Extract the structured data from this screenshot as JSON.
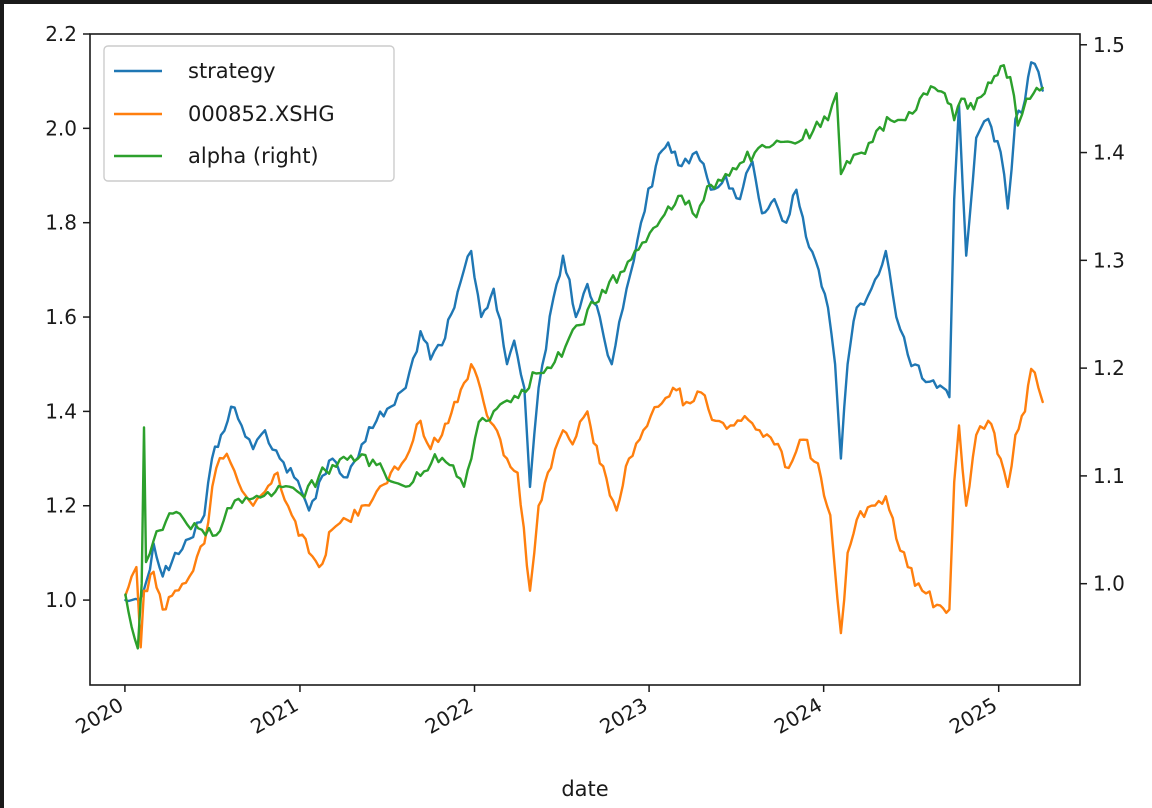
{
  "chart_data": {
    "type": "line",
    "title": "",
    "xlabel": "date",
    "ylabel": "",
    "grid": false,
    "legend_position": "top-left",
    "x_range": [
      "2019-10-20",
      "2025-06-20"
    ],
    "xticks": [
      "2020-01-01",
      "2021-01-01",
      "2022-01-01",
      "2023-01-01",
      "2024-01-01",
      "2025-01-01"
    ],
    "xtick_labels": [
      "2020",
      "2021",
      "2022",
      "2023",
      "2024",
      "2025"
    ],
    "left_axis": {
      "ylim": [
        0.82,
        2.2
      ],
      "ticks": [
        1.0,
        1.2,
        1.4,
        1.6,
        1.8,
        2.0,
        2.2
      ],
      "tick_labels": [
        "1.0",
        "1.2",
        "1.4",
        "1.6",
        "1.8",
        "2.0",
        "2.2"
      ]
    },
    "right_axis": {
      "ylim": [
        0.906,
        1.51
      ],
      "ticks": [
        1.0,
        1.1,
        1.2,
        1.3,
        1.4,
        1.5
      ],
      "tick_labels": [
        "1.0",
        "1.1",
        "1.2",
        "1.3",
        "1.4",
        "1.5"
      ]
    },
    "series": [
      {
        "name": "strategy",
        "axis": "left",
        "color": "#1f77b4",
        "points": [
          [
            "2020-01-02",
            1.0
          ],
          [
            "2020-01-15",
            1.0
          ],
          [
            "2020-02-01",
            1.0
          ],
          [
            "2020-02-15",
            1.04
          ],
          [
            "2020-03-01",
            1.12
          ],
          [
            "2020-03-20",
            1.05
          ],
          [
            "2020-04-15",
            1.1
          ],
          [
            "2020-05-15",
            1.13
          ],
          [
            "2020-06-15",
            1.18
          ],
          [
            "2020-07-01",
            1.3
          ],
          [
            "2020-07-20",
            1.35
          ],
          [
            "2020-08-10",
            1.41
          ],
          [
            "2020-09-01",
            1.37
          ],
          [
            "2020-09-25",
            1.32
          ],
          [
            "2020-10-20",
            1.36
          ],
          [
            "2020-11-20",
            1.3
          ],
          [
            "2020-12-20",
            1.26
          ],
          [
            "2021-01-20",
            1.19
          ],
          [
            "2021-02-10",
            1.25
          ],
          [
            "2021-03-10",
            1.3
          ],
          [
            "2021-04-10",
            1.26
          ],
          [
            "2021-05-10",
            1.33
          ],
          [
            "2021-06-10",
            1.38
          ],
          [
            "2021-07-10",
            1.41
          ],
          [
            "2021-08-10",
            1.45
          ],
          [
            "2021-09-10",
            1.57
          ],
          [
            "2021-10-01",
            1.51
          ],
          [
            "2021-10-25",
            1.54
          ],
          [
            "2021-11-20",
            1.62
          ],
          [
            "2021-12-10",
            1.7
          ],
          [
            "2021-12-25",
            1.74
          ],
          [
            "2022-01-15",
            1.6
          ],
          [
            "2022-02-10",
            1.66
          ],
          [
            "2022-03-10",
            1.5
          ],
          [
            "2022-03-25",
            1.55
          ],
          [
            "2022-04-15",
            1.45
          ],
          [
            "2022-04-27",
            1.24
          ],
          [
            "2022-05-15",
            1.45
          ],
          [
            "2022-06-15",
            1.64
          ],
          [
            "2022-07-05",
            1.73
          ],
          [
            "2022-08-01",
            1.6
          ],
          [
            "2022-08-25",
            1.67
          ],
          [
            "2022-09-20",
            1.6
          ],
          [
            "2022-10-15",
            1.5
          ],
          [
            "2022-11-15",
            1.66
          ],
          [
            "2022-12-15",
            1.8
          ],
          [
            "2023-01-15",
            1.92
          ],
          [
            "2023-02-10",
            1.97
          ],
          [
            "2023-03-10",
            1.92
          ],
          [
            "2023-04-10",
            1.95
          ],
          [
            "2023-05-10",
            1.87
          ],
          [
            "2023-06-10",
            1.9
          ],
          [
            "2023-07-10",
            1.85
          ],
          [
            "2023-08-05",
            1.93
          ],
          [
            "2023-08-25",
            1.82
          ],
          [
            "2023-09-20",
            1.85
          ],
          [
            "2023-10-15",
            1.8
          ],
          [
            "2023-11-05",
            1.87
          ],
          [
            "2023-11-25",
            1.77
          ],
          [
            "2023-12-15",
            1.72
          ],
          [
            "2024-01-10",
            1.62
          ],
          [
            "2024-01-25",
            1.5
          ],
          [
            "2024-02-06",
            1.3
          ],
          [
            "2024-02-20",
            1.5
          ],
          [
            "2024-03-10",
            1.62
          ],
          [
            "2024-04-10",
            1.66
          ],
          [
            "2024-05-10",
            1.74
          ],
          [
            "2024-06-01",
            1.6
          ],
          [
            "2024-06-25",
            1.52
          ],
          [
            "2024-07-25",
            1.47
          ],
          [
            "2024-08-25",
            1.45
          ],
          [
            "2024-09-20",
            1.43
          ],
          [
            "2024-09-30",
            1.85
          ],
          [
            "2024-10-10",
            2.05
          ],
          [
            "2024-10-25",
            1.73
          ],
          [
            "2024-11-15",
            1.98
          ],
          [
            "2024-12-10",
            2.02
          ],
          [
            "2025-01-05",
            1.95
          ],
          [
            "2025-01-20",
            1.83
          ],
          [
            "2025-02-05",
            2.02
          ],
          [
            "2025-02-25",
            2.06
          ],
          [
            "2025-03-10",
            2.14
          ],
          [
            "2025-03-25",
            2.12
          ],
          [
            "2025-04-03",
            2.08
          ]
        ]
      },
      {
        "name": "000852.XSHG",
        "axis": "left",
        "color": "#ff7f0e",
        "points": [
          [
            "2020-01-02",
            1.01
          ],
          [
            "2020-01-15",
            1.05
          ],
          [
            "2020-01-25",
            1.07
          ],
          [
            "2020-02-03",
            0.9
          ],
          [
            "2020-02-10",
            1.02
          ],
          [
            "2020-03-01",
            1.06
          ],
          [
            "2020-03-20",
            0.98
          ],
          [
            "2020-04-15",
            1.02
          ],
          [
            "2020-05-15",
            1.05
          ],
          [
            "2020-06-15",
            1.12
          ],
          [
            "2020-07-10",
            1.28
          ],
          [
            "2020-08-01",
            1.31
          ],
          [
            "2020-08-25",
            1.25
          ],
          [
            "2020-09-25",
            1.2
          ],
          [
            "2020-10-20",
            1.23
          ],
          [
            "2020-11-15",
            1.27
          ],
          [
            "2020-12-15",
            1.18
          ],
          [
            "2021-01-20",
            1.1
          ],
          [
            "2021-02-10",
            1.07
          ],
          [
            "2021-03-10",
            1.15
          ],
          [
            "2021-04-10",
            1.17
          ],
          [
            "2021-05-10",
            1.2
          ],
          [
            "2021-06-10",
            1.23
          ],
          [
            "2021-07-10",
            1.27
          ],
          [
            "2021-08-10",
            1.3
          ],
          [
            "2021-09-10",
            1.38
          ],
          [
            "2021-10-01",
            1.32
          ],
          [
            "2021-10-25",
            1.35
          ],
          [
            "2021-11-20",
            1.42
          ],
          [
            "2021-12-10",
            1.46
          ],
          [
            "2021-12-25",
            1.5
          ],
          [
            "2022-01-20",
            1.42
          ],
          [
            "2022-02-10",
            1.37
          ],
          [
            "2022-03-10",
            1.3
          ],
          [
            "2022-04-01",
            1.27
          ],
          [
            "2022-04-27",
            1.02
          ],
          [
            "2022-05-15",
            1.2
          ],
          [
            "2022-06-10",
            1.28
          ],
          [
            "2022-07-05",
            1.36
          ],
          [
            "2022-07-25",
            1.33
          ],
          [
            "2022-08-25",
            1.4
          ],
          [
            "2022-09-20",
            1.29
          ],
          [
            "2022-10-25",
            1.19
          ],
          [
            "2022-11-20",
            1.3
          ],
          [
            "2022-12-20",
            1.36
          ],
          [
            "2023-01-20",
            1.41
          ],
          [
            "2023-02-20",
            1.45
          ],
          [
            "2023-03-20",
            1.42
          ],
          [
            "2023-04-20",
            1.44
          ],
          [
            "2023-05-20",
            1.38
          ],
          [
            "2023-06-20",
            1.37
          ],
          [
            "2023-07-20",
            1.39
          ],
          [
            "2023-08-20",
            1.36
          ],
          [
            "2023-09-20",
            1.33
          ],
          [
            "2023-10-20",
            1.28
          ],
          [
            "2023-11-20",
            1.34
          ],
          [
            "2023-12-20",
            1.29
          ],
          [
            "2024-01-15",
            1.18
          ],
          [
            "2024-02-06",
            0.93
          ],
          [
            "2024-02-20",
            1.1
          ],
          [
            "2024-03-10",
            1.17
          ],
          [
            "2024-04-10",
            1.2
          ],
          [
            "2024-05-10",
            1.22
          ],
          [
            "2024-06-01",
            1.13
          ],
          [
            "2024-06-25",
            1.07
          ],
          [
            "2024-07-25",
            1.02
          ],
          [
            "2024-08-25",
            0.99
          ],
          [
            "2024-09-20",
            0.98
          ],
          [
            "2024-09-30",
            1.25
          ],
          [
            "2024-10-10",
            1.37
          ],
          [
            "2024-10-25",
            1.2
          ],
          [
            "2024-11-15",
            1.35
          ],
          [
            "2024-12-10",
            1.38
          ],
          [
            "2025-01-05",
            1.3
          ],
          [
            "2025-01-20",
            1.24
          ],
          [
            "2025-02-05",
            1.35
          ],
          [
            "2025-02-25",
            1.4
          ],
          [
            "2025-03-10",
            1.49
          ],
          [
            "2025-03-25",
            1.45
          ],
          [
            "2025-04-03",
            1.42
          ]
        ]
      },
      {
        "name": "alpha (right)",
        "axis": "right",
        "color": "#2ca02c",
        "points": [
          [
            "2020-01-02",
            0.99
          ],
          [
            "2020-01-15",
            0.96
          ],
          [
            "2020-01-28",
            0.94
          ],
          [
            "2020-02-05",
            1.0
          ],
          [
            "2020-02-10",
            1.145
          ],
          [
            "2020-02-14",
            1.02
          ],
          [
            "2020-03-01",
            1.04
          ],
          [
            "2020-03-20",
            1.05
          ],
          [
            "2020-04-10",
            1.065
          ],
          [
            "2020-05-10",
            1.055
          ],
          [
            "2020-06-10",
            1.05
          ],
          [
            "2020-07-10",
            1.045
          ],
          [
            "2020-08-10",
            1.07
          ],
          [
            "2020-09-10",
            1.08
          ],
          [
            "2020-10-10",
            1.08
          ],
          [
            "2020-11-10",
            1.085
          ],
          [
            "2020-12-10",
            1.09
          ],
          [
            "2021-01-10",
            1.08
          ],
          [
            "2021-02-10",
            1.1
          ],
          [
            "2021-03-10",
            1.11
          ],
          [
            "2021-04-10",
            1.115
          ],
          [
            "2021-05-10",
            1.12
          ],
          [
            "2021-06-10",
            1.11
          ],
          [
            "2021-07-10",
            1.095
          ],
          [
            "2021-08-10",
            1.09
          ],
          [
            "2021-09-10",
            1.1
          ],
          [
            "2021-10-10",
            1.12
          ],
          [
            "2021-11-10",
            1.11
          ],
          [
            "2021-12-10",
            1.09
          ],
          [
            "2022-01-10",
            1.15
          ],
          [
            "2022-02-10",
            1.16
          ],
          [
            "2022-03-10",
            1.17
          ],
          [
            "2022-04-10",
            1.18
          ],
          [
            "2022-05-10",
            1.195
          ],
          [
            "2022-06-10",
            1.2
          ],
          [
            "2022-07-10",
            1.22
          ],
          [
            "2022-08-10",
            1.24
          ],
          [
            "2022-09-10",
            1.26
          ],
          [
            "2022-10-10",
            1.28
          ],
          [
            "2022-11-10",
            1.29
          ],
          [
            "2022-12-10",
            1.31
          ],
          [
            "2023-01-10",
            1.33
          ],
          [
            "2023-02-10",
            1.35
          ],
          [
            "2023-03-10",
            1.36
          ],
          [
            "2023-04-10",
            1.34
          ],
          [
            "2023-05-10",
            1.37
          ],
          [
            "2023-06-10",
            1.38
          ],
          [
            "2023-07-10",
            1.39
          ],
          [
            "2023-08-10",
            1.4
          ],
          [
            "2023-09-10",
            1.405
          ],
          [
            "2023-10-10",
            1.41
          ],
          [
            "2023-11-10",
            1.41
          ],
          [
            "2023-12-10",
            1.42
          ],
          [
            "2024-01-10",
            1.43
          ],
          [
            "2024-01-28",
            1.455
          ],
          [
            "2024-02-06",
            1.38
          ],
          [
            "2024-02-25",
            1.39
          ],
          [
            "2024-03-20",
            1.4
          ],
          [
            "2024-04-20",
            1.42
          ],
          [
            "2024-05-20",
            1.43
          ],
          [
            "2024-06-20",
            1.43
          ],
          [
            "2024-07-20",
            1.45
          ],
          [
            "2024-08-20",
            1.46
          ],
          [
            "2024-09-10",
            1.455
          ],
          [
            "2024-09-30",
            1.43
          ],
          [
            "2024-10-15",
            1.45
          ],
          [
            "2024-11-10",
            1.44
          ],
          [
            "2024-12-10",
            1.465
          ],
          [
            "2025-01-05",
            1.48
          ],
          [
            "2025-01-25",
            1.47
          ],
          [
            "2025-02-10",
            1.425
          ],
          [
            "2025-02-28",
            1.45
          ],
          [
            "2025-03-15",
            1.455
          ],
          [
            "2025-04-03",
            1.46
          ]
        ]
      }
    ]
  }
}
